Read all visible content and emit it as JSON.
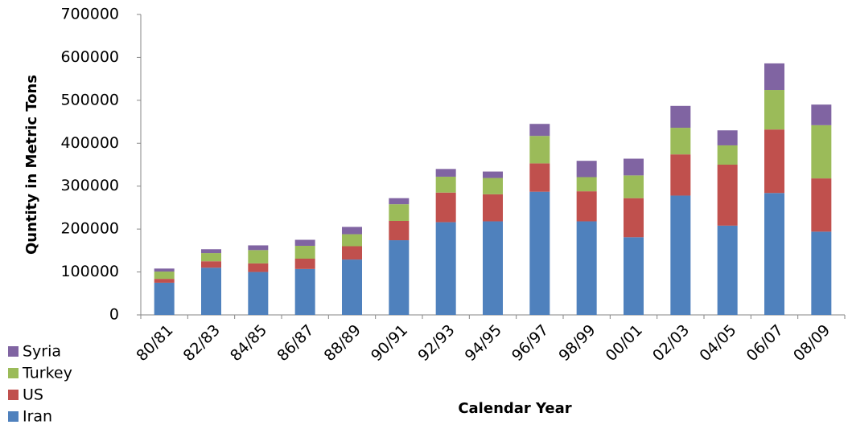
{
  "chart_data": {
    "type": "stacked_bar",
    "x_label": "Calendar Year",
    "y_label": "Quntity in  Metric  Tons",
    "categories": [
      "80/81",
      "82/83",
      "84/85",
      "86/87",
      "88/89",
      "90/91",
      "92/93",
      "94/95",
      "96/97",
      "98/99",
      "00/01",
      "02/03",
      "04/05",
      "06/07",
      "08/09"
    ],
    "series": [
      {
        "name": "Iran",
        "color": "#4f81bd",
        "values": [
          75000,
          110000,
          100000,
          107000,
          129000,
          174000,
          216000,
          218000,
          287000,
          218000,
          181000,
          278000,
          208000,
          284000,
          194000
        ]
      },
      {
        "name": "US",
        "color": "#c0504d",
        "values": [
          9000,
          15000,
          20000,
          24000,
          31000,
          45000,
          69000,
          63000,
          66000,
          70000,
          91000,
          96000,
          142000,
          148000,
          124000
        ]
      },
      {
        "name": "Turkey",
        "color": "#9bbb59",
        "values": [
          17000,
          19000,
          31000,
          30000,
          28000,
          39000,
          37000,
          38000,
          64000,
          33000,
          53000,
          62000,
          45000,
          92000,
          124000
        ]
      },
      {
        "name": "Syria",
        "color": "#8064a2",
        "values": [
          7000,
          9000,
          11000,
          14000,
          17000,
          14000,
          18000,
          15000,
          28000,
          38000,
          39000,
          51000,
          35000,
          62000,
          48000
        ]
      }
    ],
    "ylim": [
      0,
      700000
    ],
    "yticks": [
      0,
      100000,
      200000,
      300000,
      400000,
      500000,
      600000,
      700000
    ],
    "grid": false,
    "legend": "bottom-left"
  }
}
